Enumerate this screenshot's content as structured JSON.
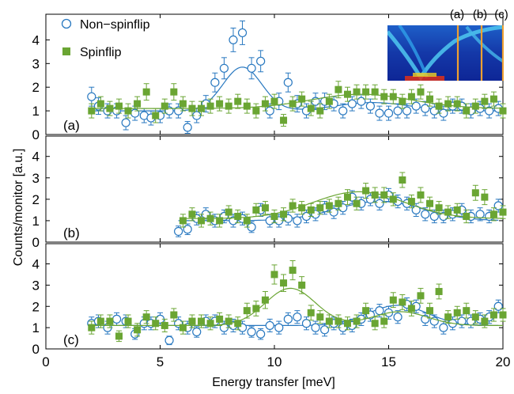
{
  "figure": {
    "xlabel": "Energy transfer [meV]",
    "ylabel": "Counts/monitor [a.u.]",
    "legend": {
      "nsf": "Non−spinflip",
      "sf": "Spinflip"
    },
    "inset_labels": [
      "(a)",
      "(b)",
      "(c)"
    ],
    "colors": {
      "nsf": "#2878c0",
      "sf": "#6aa533",
      "inset_line": "#f0a030"
    }
  },
  "chart_data": [
    {
      "type": "scatter",
      "panel_label": "(a)",
      "xlim": [
        0,
        20
      ],
      "ylim": [
        0,
        5
      ],
      "yticks": [
        0,
        1,
        2,
        3,
        4
      ],
      "xticks": [
        0,
        5,
        10,
        15,
        20
      ],
      "grid": false,
      "legend_position": "top-left",
      "series": [
        {
          "name": "Non−spinflip",
          "marker": "open-circle",
          "x": [
            2.0,
            2.3,
            2.7,
            3.1,
            3.5,
            3.9,
            4.3,
            4.6,
            5.0,
            5.4,
            5.8,
            6.2,
            6.6,
            7.0,
            7.4,
            7.8,
            8.2,
            8.6,
            9.0,
            9.4,
            9.8,
            10.2,
            10.6,
            11.0,
            11.4,
            11.8,
            12.2,
            12.6,
            13.0,
            13.4,
            13.8,
            14.2,
            14.6,
            15.0,
            15.4,
            15.8,
            16.2,
            16.6,
            17.0,
            17.4,
            17.8,
            18.2,
            18.6,
            19.0,
            19.4,
            19.8
          ],
          "y": [
            1.6,
            1.2,
            1.0,
            1.0,
            0.5,
            0.9,
            0.8,
            0.7,
            0.8,
            1.0,
            1.0,
            0.3,
            0.8,
            1.3,
            2.2,
            2.8,
            4.0,
            4.3,
            2.8,
            3.1,
            1.0,
            1.4,
            2.2,
            1.3,
            1.0,
            1.4,
            1.4,
            1.3,
            1.0,
            1.3,
            1.4,
            1.2,
            0.9,
            0.9,
            1.0,
            1.0,
            1.2,
            1.1,
            1.0,
            0.9,
            1.2,
            1.2,
            1.0,
            1.1,
            1.0,
            1.1
          ],
          "err": [
            0.4,
            0.35,
            0.3,
            0.3,
            0.3,
            0.3,
            0.3,
            0.3,
            0.3,
            0.3,
            0.3,
            0.25,
            0.3,
            0.35,
            0.4,
            0.45,
            0.5,
            0.5,
            0.45,
            0.45,
            0.3,
            0.35,
            0.4,
            0.35,
            0.3,
            0.35,
            0.35,
            0.3,
            0.3,
            0.3,
            0.3,
            0.3,
            0.3,
            0.3,
            0.3,
            0.3,
            0.3,
            0.3,
            0.3,
            0.3,
            0.3,
            0.3,
            0.3,
            0.3,
            0.3,
            0.3
          ],
          "fit": {
            "baseline": 1.0,
            "peaks": [
              {
                "center": 8.6,
                "amplitude": 1.85,
                "sigma": 0.85
              },
              {
                "center": 14.3,
                "amplitude": 0.35,
                "sigma": 1.6
              }
            ]
          }
        },
        {
          "name": "Spinflip",
          "marker": "filled-square",
          "x": [
            2.0,
            2.4,
            2.8,
            3.2,
            3.6,
            4.0,
            4.4,
            4.8,
            5.2,
            5.6,
            6.0,
            6.4,
            6.8,
            7.2,
            7.6,
            8.0,
            8.4,
            8.8,
            9.2,
            9.6,
            10.0,
            10.4,
            10.8,
            11.2,
            11.6,
            12.0,
            12.4,
            12.8,
            13.2,
            13.6,
            14.0,
            14.4,
            14.8,
            15.2,
            15.6,
            16.0,
            16.4,
            16.8,
            17.2,
            17.6,
            18.0,
            18.4,
            18.8,
            19.2,
            19.6,
            20.0
          ],
          "y": [
            1.0,
            1.3,
            1.1,
            1.2,
            1.0,
            1.3,
            1.8,
            0.8,
            1.2,
            1.8,
            1.3,
            1.1,
            1.1,
            1.2,
            1.3,
            1.2,
            1.4,
            1.2,
            1.0,
            1.3,
            1.4,
            0.6,
            1.3,
            1.5,
            1.1,
            1.0,
            1.4,
            1.9,
            1.7,
            1.8,
            1.8,
            1.8,
            1.6,
            1.6,
            1.4,
            1.6,
            1.8,
            1.5,
            1.2,
            1.3,
            1.3,
            1.0,
            1.2,
            1.4,
            1.5,
            1.0
          ],
          "err": [
            0.3,
            0.3,
            0.3,
            0.3,
            0.3,
            0.3,
            0.35,
            0.3,
            0.3,
            0.35,
            0.3,
            0.3,
            0.3,
            0.3,
            0.3,
            0.3,
            0.3,
            0.3,
            0.3,
            0.3,
            0.3,
            0.25,
            0.3,
            0.3,
            0.3,
            0.3,
            0.3,
            0.35,
            0.3,
            0.3,
            0.3,
            0.3,
            0.3,
            0.3,
            0.3,
            0.3,
            0.3,
            0.3,
            0.3,
            0.3,
            0.3,
            0.3,
            0.3,
            0.3,
            0.3,
            0.3
          ],
          "fit": {
            "baseline": 1.1,
            "peaks": [
              {
                "center": 13.8,
                "amplitude": 0.6,
                "sigma": 2.2
              }
            ]
          }
        }
      ]
    },
    {
      "type": "scatter",
      "panel_label": "(b)",
      "xlim": [
        0,
        20
      ],
      "ylim": [
        0,
        5
      ],
      "yticks": [
        0,
        1,
        2,
        3,
        4
      ],
      "xticks": [
        0,
        5,
        10,
        15,
        20
      ],
      "grid": false,
      "series": [
        {
          "name": "Non−spinflip",
          "marker": "open-circle",
          "x": [
            5.8,
            6.2,
            6.6,
            7.0,
            7.4,
            7.8,
            8.2,
            8.6,
            9.0,
            9.4,
            9.8,
            10.2,
            10.6,
            11.0,
            11.4,
            11.8,
            12.2,
            12.6,
            13.0,
            13.4,
            13.8,
            14.2,
            14.6,
            15.0,
            15.4,
            15.8,
            16.2,
            16.6,
            17.0,
            17.4,
            17.8,
            18.2,
            18.6,
            19.0,
            19.4,
            19.8
          ],
          "y": [
            0.5,
            0.6,
            1.1,
            1.3,
            1.0,
            1.2,
            1.0,
            1.1,
            0.7,
            1.5,
            1.0,
            1.0,
            1.1,
            1.0,
            1.2,
            1.3,
            1.6,
            1.4,
            1.6,
            2.1,
            1.8,
            2.0,
            1.8,
            2.2,
            1.9,
            1.8,
            1.5,
            1.3,
            1.2,
            1.2,
            1.3,
            1.5,
            1.2,
            1.3,
            1.2,
            1.7
          ],
          "err": [
            0.25,
            0.25,
            0.3,
            0.3,
            0.3,
            0.3,
            0.3,
            0.3,
            0.25,
            0.3,
            0.3,
            0.3,
            0.3,
            0.3,
            0.3,
            0.3,
            0.3,
            0.3,
            0.3,
            0.3,
            0.3,
            0.3,
            0.3,
            0.3,
            0.3,
            0.3,
            0.3,
            0.3,
            0.3,
            0.3,
            0.3,
            0.3,
            0.3,
            0.3,
            0.3,
            0.3
          ],
          "fit": {
            "baseline": 1.0,
            "peaks": [
              {
                "center": 14.6,
                "amplitude": 0.9,
                "sigma": 1.9
              }
            ]
          }
        },
        {
          "name": "Spinflip",
          "marker": "filled-square",
          "x": [
            6.0,
            6.4,
            6.8,
            7.2,
            7.6,
            8.0,
            8.4,
            8.8,
            9.2,
            9.6,
            10.0,
            10.4,
            10.8,
            11.2,
            11.6,
            12.0,
            12.4,
            12.8,
            13.2,
            13.6,
            14.0,
            14.4,
            14.8,
            15.2,
            15.6,
            16.0,
            16.4,
            16.8,
            17.2,
            17.6,
            18.0,
            18.4,
            18.8,
            19.2,
            19.6,
            20.0
          ],
          "y": [
            1.0,
            1.3,
            1.0,
            1.1,
            1.0,
            1.4,
            1.2,
            1.0,
            1.5,
            1.6,
            1.2,
            1.3,
            1.7,
            1.6,
            1.5,
            1.6,
            1.7,
            1.8,
            2.1,
            1.8,
            2.4,
            2.2,
            2.2,
            2.0,
            2.9,
            1.9,
            2.2,
            1.8,
            1.6,
            1.4,
            1.5,
            1.2,
            2.3,
            2.1,
            1.3,
            1.4
          ],
          "err": [
            0.3,
            0.3,
            0.3,
            0.3,
            0.3,
            0.3,
            0.3,
            0.3,
            0.3,
            0.3,
            0.3,
            0.3,
            0.3,
            0.3,
            0.3,
            0.3,
            0.3,
            0.3,
            0.35,
            0.3,
            0.35,
            0.35,
            0.35,
            0.3,
            0.35,
            0.3,
            0.35,
            0.3,
            0.3,
            0.3,
            0.3,
            0.3,
            0.35,
            0.35,
            0.3,
            0.3
          ],
          "fit": {
            "baseline": 1.1,
            "peaks": [
              {
                "center": 13.7,
                "amplitude": 1.25,
                "sigma": 2.0
              }
            ]
          }
        }
      ]
    },
    {
      "type": "scatter",
      "panel_label": "(c)",
      "xlim": [
        0,
        20
      ],
      "ylim": [
        0,
        5
      ],
      "yticks": [
        0,
        1,
        2,
        3,
        4
      ],
      "xticks": [
        0,
        5,
        10,
        15,
        20
      ],
      "grid": false,
      "series": [
        {
          "name": "Non−spinflip",
          "marker": "open-circle",
          "x": [
            2.0,
            2.3,
            2.7,
            3.1,
            3.5,
            3.9,
            4.3,
            4.6,
            5.0,
            5.4,
            5.8,
            6.2,
            6.6,
            7.0,
            7.4,
            7.8,
            8.2,
            8.6,
            9.0,
            9.4,
            9.8,
            10.2,
            10.6,
            11.0,
            11.4,
            11.8,
            12.2,
            12.6,
            13.0,
            13.4,
            13.8,
            14.2,
            14.6,
            15.0,
            15.4,
            15.8,
            16.2,
            16.6,
            17.0,
            17.4,
            17.8,
            18.2,
            18.6,
            19.0,
            19.4,
            19.8
          ],
          "y": [
            1.2,
            1.3,
            1.0,
            1.4,
            1.3,
            0.7,
            1.2,
            1.2,
            1.4,
            0.4,
            1.2,
            1.0,
            0.8,
            1.3,
            1.3,
            1.0,
            1.1,
            1.0,
            0.8,
            0.7,
            1.1,
            1.0,
            1.4,
            1.5,
            1.2,
            1.0,
            0.9,
            1.2,
            1.0,
            1.1,
            1.4,
            1.6,
            1.8,
            1.7,
            1.5,
            2.1,
            2.0,
            1.4,
            1.3,
            1.0,
            1.2,
            1.3,
            1.3,
            1.4,
            1.5,
            2.0
          ],
          "err": [
            0.3,
            0.3,
            0.3,
            0.3,
            0.3,
            0.25,
            0.3,
            0.3,
            0.3,
            0.2,
            0.3,
            0.3,
            0.25,
            0.3,
            0.3,
            0.3,
            0.3,
            0.3,
            0.25,
            0.25,
            0.3,
            0.3,
            0.3,
            0.3,
            0.3,
            0.3,
            0.3,
            0.3,
            0.3,
            0.3,
            0.3,
            0.3,
            0.3,
            0.3,
            0.3,
            0.3,
            0.3,
            0.3,
            0.3,
            0.3,
            0.3,
            0.3,
            0.3,
            0.3,
            0.3,
            0.3
          ],
          "fit": {
            "baseline": 1.1,
            "peaks": [
              {
                "center": 15.4,
                "amplitude": 0.95,
                "sigma": 1.3
              }
            ]
          }
        },
        {
          "name": "Spinflip",
          "marker": "filled-square",
          "x": [
            2.0,
            2.4,
            2.8,
            3.2,
            3.6,
            4.0,
            4.4,
            4.8,
            5.2,
            5.6,
            6.0,
            6.4,
            6.8,
            7.2,
            7.6,
            8.0,
            8.4,
            8.8,
            9.2,
            9.6,
            10.0,
            10.4,
            10.8,
            11.2,
            11.6,
            12.0,
            12.4,
            12.8,
            13.2,
            13.6,
            14.0,
            14.4,
            14.8,
            15.2,
            15.6,
            16.0,
            16.4,
            16.8,
            17.2,
            17.6,
            18.0,
            18.4,
            18.8,
            19.2,
            19.6,
            20.0
          ],
          "y": [
            1.0,
            1.3,
            1.3,
            0.6,
            1.3,
            0.9,
            1.5,
            1.2,
            1.1,
            1.6,
            1.0,
            1.3,
            1.3,
            1.2,
            1.4,
            1.3,
            1.2,
            1.8,
            1.9,
            2.3,
            3.5,
            3.1,
            3.7,
            3.0,
            1.7,
            1.5,
            1.3,
            1.3,
            1.2,
            1.3,
            1.8,
            1.2,
            1.3,
            2.3,
            2.2,
            1.9,
            2.5,
            1.8,
            2.7,
            1.5,
            1.7,
            1.8,
            1.5,
            1.3,
            1.6,
            1.6
          ],
          "err": [
            0.3,
            0.3,
            0.3,
            0.25,
            0.3,
            0.3,
            0.3,
            0.3,
            0.3,
            0.3,
            0.3,
            0.3,
            0.3,
            0.3,
            0.3,
            0.3,
            0.3,
            0.35,
            0.35,
            0.4,
            0.45,
            0.4,
            0.45,
            0.4,
            0.35,
            0.3,
            0.3,
            0.3,
            0.3,
            0.3,
            0.35,
            0.3,
            0.3,
            0.35,
            0.35,
            0.35,
            0.35,
            0.35,
            0.35,
            0.3,
            0.3,
            0.35,
            0.3,
            0.3,
            0.3,
            0.3
          ],
          "fit": {
            "baseline": 1.1,
            "peaks": [
              {
                "center": 10.7,
                "amplitude": 1.75,
                "sigma": 1.1
              },
              {
                "center": 15.5,
                "amplitude": 0.65,
                "sigma": 1.2
              }
            ]
          }
        }
      ]
    }
  ]
}
